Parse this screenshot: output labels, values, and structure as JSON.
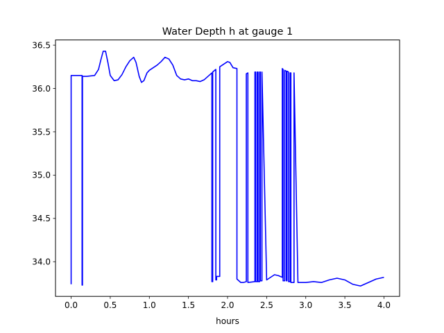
{
  "chart_data": {
    "type": "line",
    "title": "Water Depth h at gauge 1",
    "xlabel": "hours",
    "ylabel": "",
    "xlim": [
      -0.2,
      4.2
    ],
    "ylim": [
      33.6,
      36.56
    ],
    "xticks": [
      0.0,
      0.5,
      1.0,
      1.5,
      2.0,
      2.5,
      3.0,
      3.5,
      4.0
    ],
    "xtick_labels": [
      "0.0",
      "0.5",
      "1.0",
      "1.5",
      "2.0",
      "2.5",
      "3.0",
      "3.5",
      "4.0"
    ],
    "yticks": [
      34.0,
      34.5,
      35.0,
      35.5,
      36.0,
      36.5
    ],
    "ytick_labels": [
      "34.0",
      "34.5",
      "35.0",
      "35.5",
      "36.0",
      "36.5"
    ],
    "grid": false,
    "legend": "none",
    "series": [
      {
        "color": "#0000ff",
        "x": [
          0.0,
          0.0,
          0.14,
          0.14,
          0.145,
          0.145,
          0.2,
          0.3,
          0.35,
          0.38,
          0.41,
          0.44,
          0.47,
          0.5,
          0.55,
          0.6,
          0.65,
          0.7,
          0.75,
          0.8,
          0.83,
          0.87,
          0.9,
          0.93,
          0.97,
          1.0,
          1.05,
          1.1,
          1.15,
          1.2,
          1.25,
          1.3,
          1.35,
          1.4,
          1.45,
          1.5,
          1.55,
          1.6,
          1.65,
          1.7,
          1.75,
          1.8,
          1.8,
          1.81,
          1.81,
          1.85,
          1.85,
          1.86,
          1.86,
          1.9,
          1.9,
          1.95,
          2.0,
          2.03,
          2.07,
          2.12,
          2.12,
          2.17,
          2.2,
          2.24,
          2.24,
          2.26,
          2.26,
          2.35,
          2.35,
          2.36,
          2.36,
          2.38,
          2.38,
          2.39,
          2.39,
          2.41,
          2.41,
          2.42,
          2.42,
          2.44,
          2.44,
          2.5,
          2.55,
          2.6,
          2.65,
          2.7,
          2.7,
          2.71,
          2.71,
          2.73,
          2.73,
          2.75,
          2.75,
          2.76,
          2.76,
          2.78,
          2.78,
          2.8,
          2.8,
          2.81,
          2.81,
          2.85,
          2.85,
          2.9,
          3.0,
          3.1,
          3.2,
          3.3,
          3.4,
          3.5,
          3.6,
          3.7,
          3.8,
          3.9,
          4.0
        ],
        "y": [
          33.74,
          36.15,
          36.15,
          33.73,
          33.73,
          36.14,
          36.14,
          36.15,
          36.22,
          36.33,
          36.43,
          36.43,
          36.3,
          36.15,
          36.09,
          36.1,
          36.16,
          36.25,
          36.32,
          36.36,
          36.3,
          36.14,
          36.07,
          36.09,
          36.18,
          36.21,
          36.24,
          36.27,
          36.31,
          36.36,
          36.34,
          36.27,
          36.15,
          36.11,
          36.1,
          36.11,
          36.09,
          36.09,
          36.08,
          36.1,
          36.14,
          36.18,
          33.77,
          33.77,
          36.19,
          36.22,
          33.79,
          33.79,
          33.83,
          33.83,
          36.25,
          36.28,
          36.31,
          36.3,
          36.24,
          36.23,
          33.8,
          33.76,
          33.76,
          33.77,
          36.17,
          36.18,
          33.76,
          33.77,
          36.19,
          36.19,
          33.77,
          33.77,
          36.19,
          36.19,
          33.77,
          33.77,
          36.19,
          36.19,
          33.78,
          33.78,
          36.19,
          33.79,
          33.82,
          33.85,
          33.84,
          33.82,
          36.23,
          36.22,
          33.78,
          33.78,
          36.21,
          36.2,
          33.78,
          33.78,
          36.2,
          36.19,
          33.77,
          33.77,
          36.18,
          36.18,
          33.76,
          33.76,
          36.18,
          33.76,
          33.76,
          33.77,
          33.76,
          33.79,
          33.81,
          33.79,
          33.74,
          33.72,
          33.76,
          33.8,
          33.82
        ]
      }
    ]
  }
}
